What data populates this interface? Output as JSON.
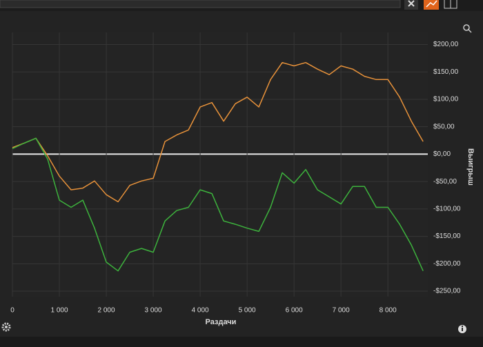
{
  "chart_data": {
    "type": "line",
    "xlabel": "Раздачи",
    "ylabel": "Выигрыш",
    "x": [
      0,
      250,
      500,
      750,
      1000,
      1250,
      1500,
      1750,
      2000,
      2250,
      2500,
      2750,
      3000,
      3250,
      3500,
      3750,
      4000,
      4250,
      4500,
      4750,
      5000,
      5250,
      5500,
      5750,
      6000,
      6250,
      6500,
      6750,
      7000,
      7250,
      7500,
      7750,
      8000,
      8250,
      8500,
      8750
    ],
    "series": [
      {
        "color": "#e8923a",
        "values": [
          12,
          20,
          29,
          -3,
          -40,
          -65,
          -62,
          -49,
          -74,
          -87,
          -57,
          -49,
          -44,
          23,
          35,
          44,
          86,
          94,
          60,
          92,
          104,
          86,
          136,
          167,
          161,
          167,
          155,
          145,
          161,
          155,
          142,
          136,
          136,
          104,
          60,
          23
        ]
      },
      {
        "color": "#3db33d",
        "values": [
          10,
          20,
          29,
          -9,
          -84,
          -97,
          -84,
          -135,
          -197,
          -213,
          -179,
          -172,
          -179,
          -122,
          -103,
          -97,
          -65,
          -72,
          -122,
          -128,
          -135,
          -141,
          -97,
          -34,
          -53,
          -28,
          -65,
          -78,
          -91,
          -59,
          -59,
          -97,
          -97,
          -128,
          -166,
          -213
        ]
      }
    ],
    "xlim": [
      0,
      8850
    ],
    "ylim": [
      -260,
      222
    ],
    "xticks": [
      0,
      {
        "value": 1000,
        "label": "1 000"
      },
      {
        "value": 2000,
        "label": "2 000"
      },
      {
        "value": 3000,
        "label": "3 000"
      },
      {
        "value": 4000,
        "label": "4 000"
      },
      {
        "value": 5000,
        "label": "5 000"
      },
      {
        "value": 6000,
        "label": "6 000"
      },
      {
        "value": 7000,
        "label": "7 000"
      },
      {
        "value": 8000,
        "label": "8 000"
      }
    ],
    "yticks": [
      {
        "value": 200,
        "label": "$200,00"
      },
      {
        "value": 150,
        "label": "$150,00"
      },
      {
        "value": 100,
        "label": "$100,00"
      },
      {
        "value": 50,
        "label": "$50,00"
      },
      {
        "value": 0,
        "label": "$0,00"
      },
      {
        "value": -50,
        "label": "-$50,00"
      },
      {
        "value": -100,
        "label": "-$100,00"
      },
      {
        "value": -150,
        "label": "-$150,00"
      },
      {
        "value": -200,
        "label": "-$200,00"
      },
      {
        "value": -250,
        "label": "-$250,00"
      }
    ],
    "grid": true
  }
}
